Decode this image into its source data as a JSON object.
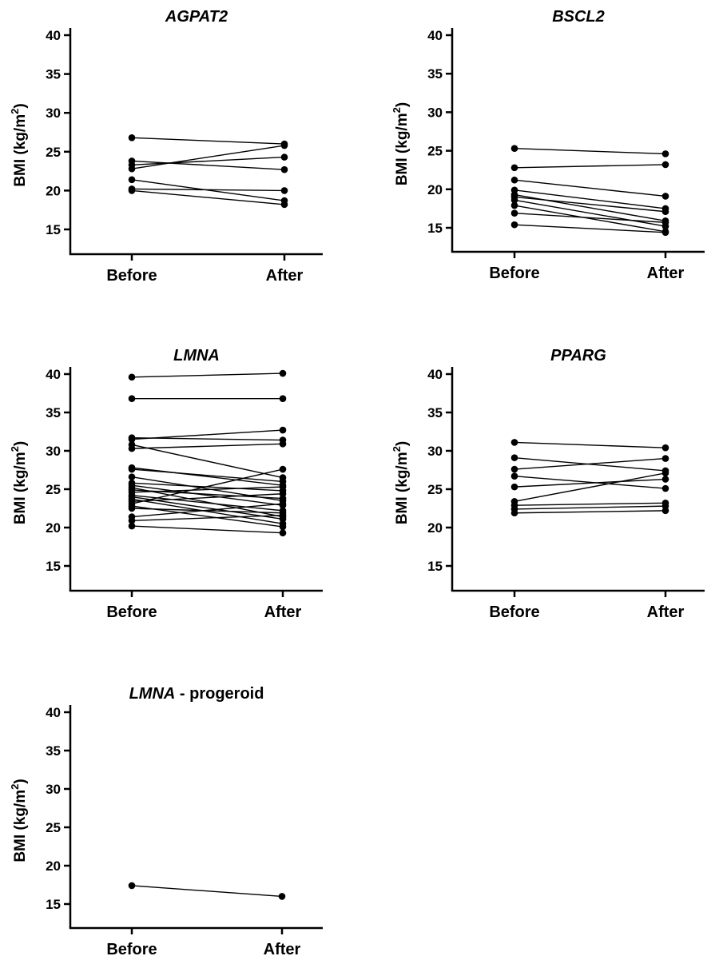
{
  "figure": {
    "ylabel_main": "BMI (kg/m",
    "ylabel_sup": "2",
    "ylabel_close": ")"
  },
  "chart_data": [
    {
      "type": "line",
      "title": "AGPAT2",
      "title_suffix": "",
      "categories": [
        "Before",
        "After"
      ],
      "ylabel": "BMI (kg/m2)",
      "ylim": [
        12,
        41
      ],
      "yticks": [
        15,
        20,
        25,
        30,
        35,
        40
      ],
      "pairs": [
        [
          26.8,
          26.0
        ],
        [
          23.8,
          22.7
        ],
        [
          23.3,
          24.3
        ],
        [
          22.8,
          25.8
        ],
        [
          21.4,
          18.7
        ],
        [
          20.2,
          20.0
        ],
        [
          20.0,
          18.2
        ]
      ]
    },
    {
      "type": "line",
      "title": "BSCL2",
      "title_suffix": "",
      "categories": [
        "Before",
        "After"
      ],
      "ylabel": "BMI (kg/m2)",
      "ylim": [
        12,
        41
      ],
      "yticks": [
        15,
        20,
        25,
        30,
        35,
        40
      ],
      "pairs": [
        [
          25.3,
          24.6
        ],
        [
          22.8,
          23.2
        ],
        [
          21.2,
          19.1
        ],
        [
          19.9,
          17.5
        ],
        [
          19.3,
          15.9
        ],
        [
          19.0,
          17.1
        ],
        [
          18.6,
          15.2
        ],
        [
          17.9,
          14.5
        ],
        [
          16.9,
          15.7
        ],
        [
          15.4,
          14.4
        ]
      ]
    },
    {
      "type": "line",
      "title": "LMNA",
      "title_suffix": "",
      "categories": [
        "Before",
        "After"
      ],
      "ylabel": "BMI (kg/m2)",
      "ylim": [
        12,
        41
      ],
      "yticks": [
        15,
        20,
        25,
        30,
        35,
        40
      ],
      "pairs": [
        [
          39.6,
          40.1
        ],
        [
          36.8,
          36.8
        ],
        [
          31.7,
          31.4
        ],
        [
          31.5,
          32.7
        ],
        [
          30.8,
          26.5
        ],
        [
          30.3,
          30.9
        ],
        [
          27.8,
          25.5
        ],
        [
          27.6,
          26.0
        ],
        [
          26.6,
          23.5
        ],
        [
          25.8,
          24.8
        ],
        [
          25.5,
          22.9
        ],
        [
          25.2,
          21.4
        ],
        [
          24.9,
          23.8
        ],
        [
          24.6,
          25.3
        ],
        [
          24.2,
          22.2
        ],
        [
          24.0,
          21.1
        ],
        [
          23.7,
          20.5
        ],
        [
          23.4,
          24.4
        ],
        [
          23.1,
          27.6
        ],
        [
          22.8,
          20.1
        ],
        [
          22.5,
          21.9
        ],
        [
          21.4,
          23.1
        ],
        [
          20.9,
          21.6
        ],
        [
          20.2,
          19.3
        ]
      ]
    },
    {
      "type": "line",
      "title": "PPARG",
      "title_suffix": "",
      "categories": [
        "Before",
        "After"
      ],
      "ylabel": "BMI (kg/m2)",
      "ylim": [
        12,
        41
      ],
      "yticks": [
        15,
        20,
        25,
        30,
        35,
        40
      ],
      "pairs": [
        [
          31.1,
          30.4
        ],
        [
          29.1,
          27.4
        ],
        [
          27.6,
          29.0
        ],
        [
          26.7,
          25.1
        ],
        [
          25.3,
          26.3
        ],
        [
          23.4,
          27.1
        ],
        [
          22.9,
          23.2
        ],
        [
          22.4,
          22.8
        ],
        [
          21.9,
          22.2
        ]
      ]
    },
    {
      "type": "line",
      "title": "LMNA",
      "title_suffix": " - progeroid",
      "categories": [
        "Before",
        "After"
      ],
      "ylabel": "BMI (kg/m2)",
      "ylim": [
        12,
        41
      ],
      "yticks": [
        15,
        20,
        25,
        30,
        35,
        40
      ],
      "pairs": [
        [
          17.4,
          16.0
        ]
      ]
    }
  ]
}
